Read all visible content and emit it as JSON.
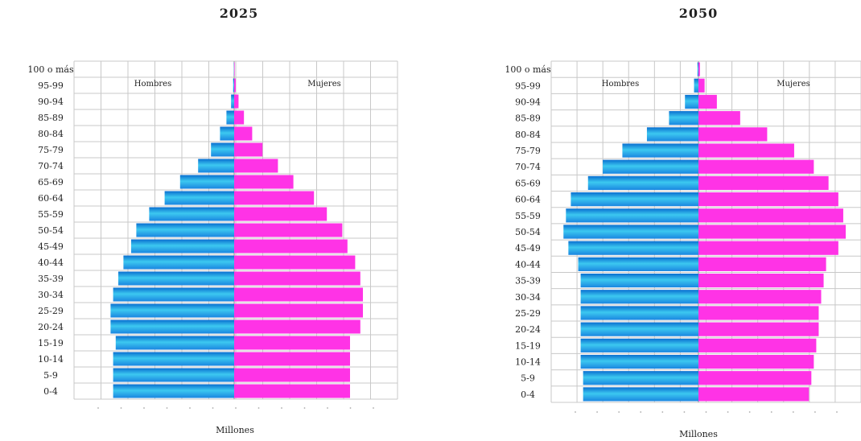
{
  "colors": {
    "men": "#1e9fdc",
    "women": "#ff33e6",
    "grid": "#c8c8c8"
  },
  "chart_data": [
    {
      "type": "bar",
      "title": "2025",
      "xlabel": "Millones",
      "ylabel": "",
      "categories": [
        "0-4",
        "5-9",
        "10-14",
        "15-19",
        "20-24",
        "25-29",
        "30-34",
        "35-39",
        "40-44",
        "45-49",
        "50-54",
        "55-59",
        "60-64",
        "65-69",
        "70-74",
        "75-79",
        "80-84",
        "85-89",
        "90-94",
        "95-99",
        "100 o más"
      ],
      "series": [
        {
          "name": "Hombres",
          "values": [
            4.7,
            4.7,
            4.7,
            4.6,
            4.8,
            4.8,
            4.7,
            4.5,
            4.3,
            4.0,
            3.8,
            3.3,
            2.7,
            2.1,
            1.4,
            0.9,
            0.55,
            0.3,
            0.12,
            0.04,
            0.01
          ]
        },
        {
          "name": "Mujeres",
          "values": [
            4.5,
            4.5,
            4.5,
            4.5,
            4.9,
            5.0,
            5.0,
            4.9,
            4.7,
            4.4,
            4.2,
            3.6,
            3.1,
            2.3,
            1.7,
            1.1,
            0.7,
            0.38,
            0.17,
            0.06,
            0.02
          ]
        }
      ],
      "xlim": [
        -6,
        6
      ],
      "legend": "top"
    },
    {
      "type": "bar",
      "title": "2050",
      "xlabel": "Millones",
      "ylabel": "",
      "categories": [
        "0-4",
        "5-9",
        "10-14",
        "15-19",
        "20-24",
        "25-29",
        "30-34",
        "35-39",
        "40-44",
        "45-49",
        "50-54",
        "55-59",
        "60-64",
        "65-69",
        "70-74",
        "75-79",
        "80-84",
        "85-89",
        "90-94",
        "95-99",
        "100 o más"
      ],
      "series": [
        {
          "name": "Hombres",
          "values": [
            4.7,
            4.7,
            4.8,
            4.8,
            4.8,
            4.8,
            4.8,
            4.8,
            4.9,
            5.3,
            5.5,
            5.4,
            5.2,
            4.5,
            3.9,
            3.1,
            2.1,
            1.2,
            0.55,
            0.18,
            0.04
          ]
        },
        {
          "name": "Mujeres",
          "values": [
            4.5,
            4.6,
            4.7,
            4.8,
            4.9,
            4.9,
            5.0,
            5.1,
            5.2,
            5.7,
            6.0,
            5.9,
            5.7,
            5.3,
            4.7,
            3.9,
            2.8,
            1.7,
            0.75,
            0.25,
            0.06
          ]
        }
      ],
      "xlim": [
        -6,
        6
      ],
      "legend": "top"
    }
  ]
}
